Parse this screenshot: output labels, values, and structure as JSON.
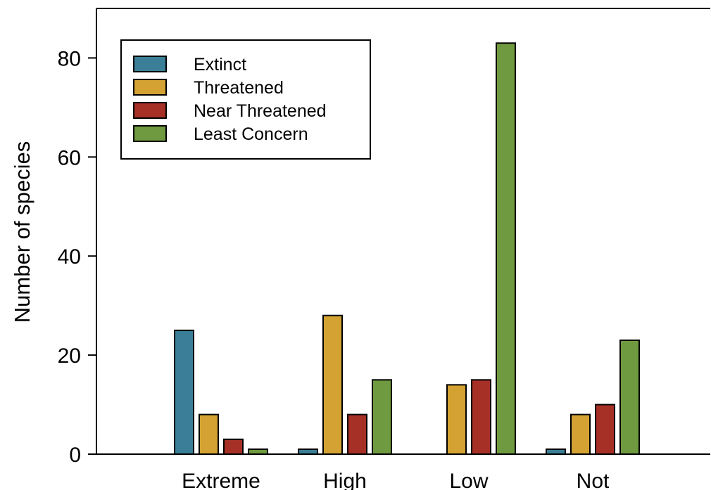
{
  "chart_data": {
    "type": "bar",
    "categories": [
      "Extreme",
      "High",
      "Low",
      "Not"
    ],
    "series": [
      {
        "name": "Extinct",
        "color": "#3a7f97",
        "values": [
          25,
          1,
          0,
          1
        ]
      },
      {
        "name": "Threatened",
        "color": "#d3a233",
        "values": [
          8,
          28,
          14,
          8
        ]
      },
      {
        "name": "Near Threatened",
        "color": "#a63026",
        "values": [
          3,
          8,
          15,
          10
        ]
      },
      {
        "name": "Least Concern",
        "color": "#6f9a3f",
        "values": [
          1,
          15,
          83,
          23
        ]
      }
    ],
    "ylabel": "Number of species",
    "ylim": [
      0,
      90
    ],
    "yticks": [
      "0",
      "20",
      "40",
      "60",
      "80"
    ],
    "legend": {
      "placement": "top-left"
    },
    "grid": false
  }
}
